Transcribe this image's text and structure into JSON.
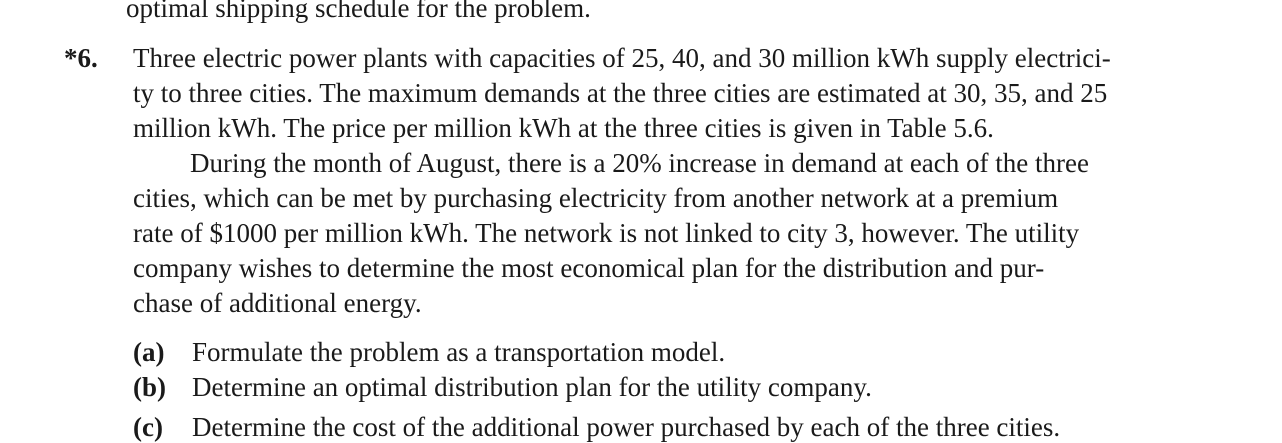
{
  "top_line": "optimal shipping schedule for the problem.",
  "problem": {
    "number": "*6.",
    "paragraph1": [
      "Three electric power plants with capacities of 25, 40, and 30 million kWh supply electrici-",
      "ty to three cities. The maximum demands at the three cities are estimated at 30, 35, and 25",
      "million kWh. The price per million kWh at the three cities is given in Table 5.6."
    ],
    "paragraph2": [
      "During the month of August, there is a 20% increase in demand at each of the three",
      "cities, which can be met by purchasing electricity from another network at a premium",
      "rate of $1000 per million kWh. The network is not linked to city 3, however. The utility",
      "company wishes to determine the most economical plan for the distribution and pur-",
      "chase of additional energy."
    ],
    "parts": [
      {
        "label": "(a)",
        "text": "Formulate the problem as a transportation model."
      },
      {
        "label": "(b)",
        "text": "Determine an optimal distribution plan for the utility company."
      },
      {
        "label": "(c)",
        "text": "Determine the cost of the additional power purchased by each of the three cities."
      }
    ]
  }
}
